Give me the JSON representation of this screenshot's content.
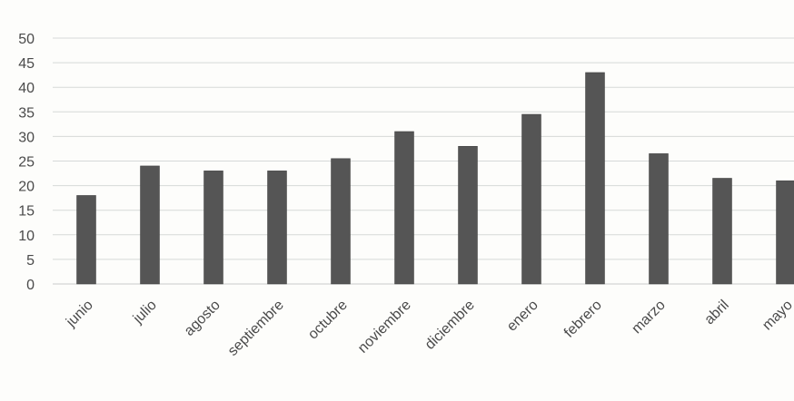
{
  "chart_data": {
    "type": "bar",
    "categories": [
      "junio",
      "julio",
      "agosto",
      "septiembre",
      "octubre",
      "noviembre",
      "diciembre",
      "enero",
      "febrero",
      "marzo",
      "abril",
      "mayo"
    ],
    "values": [
      18,
      24,
      23,
      23,
      25.5,
      31,
      28,
      34.5,
      43,
      26.5,
      21.5,
      21
    ],
    "title": "",
    "xlabel": "",
    "ylabel": "",
    "ylim": [
      0,
      50
    ],
    "yticks": [
      "0",
      "5",
      "10",
      "15",
      "20",
      "25",
      "30",
      "35",
      "40",
      "45",
      "50"
    ],
    "grid": true,
    "legend": "none",
    "bar_color": "#555555",
    "grid_color": "#d6d9d8"
  }
}
